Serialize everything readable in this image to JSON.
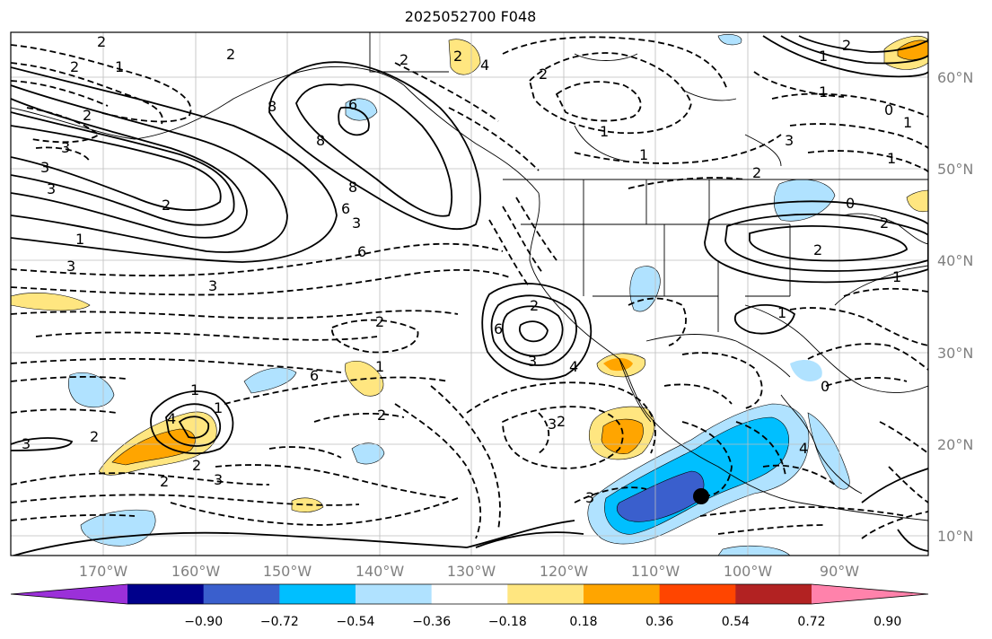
{
  "title": "2025052700 F048",
  "lon_ticks": [
    "170°W",
    "160°W",
    "150°W",
    "140°W",
    "130°W",
    "120°W",
    "110°W",
    "100°W",
    "90°W"
  ],
  "lat_ticks": [
    "60°N",
    "50°N",
    "40°N",
    "30°N",
    "20°N",
    "10°N"
  ],
  "colorbar": {
    "ticks": [
      "−0.90",
      "−0.72",
      "−0.54",
      "−0.36",
      "−0.18",
      "0.18",
      "0.36",
      "0.54",
      "0.72",
      "0.90"
    ],
    "colors": [
      "#9b30d9",
      "#00008b",
      "#3a5fcd",
      "#00bfff",
      "#b0e2ff",
      "#ffffff",
      "#ffe680",
      "#ffa500",
      "#ff4500",
      "#b22222",
      "#ff82ab"
    ]
  },
  "contour_labels": [
    "-2",
    "-1",
    "-2",
    "-2",
    "-3",
    "-3",
    "3",
    "-2",
    "-1",
    "-3",
    "-3",
    "-6",
    "-2",
    "-1",
    "2",
    "6",
    "8",
    "-6",
    "-8",
    "-2",
    "-2",
    "-4",
    "2",
    "-6",
    "-3",
    "-8",
    "-2",
    "-3",
    "2",
    "3",
    "4",
    "6",
    "-2",
    "-3",
    "3",
    "4",
    "-1",
    "-1",
    "2",
    "2",
    "-3",
    "2",
    "3",
    "4",
    "1",
    "-1",
    "-2",
    "-3",
    "-2",
    "-1",
    "-1",
    "0",
    "-1",
    "-0",
    "-2",
    "-2",
    "-1",
    "-1",
    "-0",
    "-1"
  ],
  "marker": "storm-center"
}
